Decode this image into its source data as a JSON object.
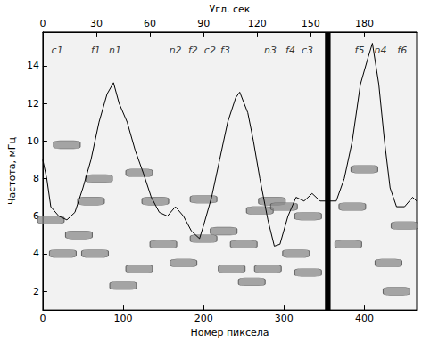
{
  "chart_data": {
    "type": "line",
    "x_label": "Номер пиксела",
    "x2_label": "Угл. сек",
    "y_label": "Частота, мГц",
    "xlim": [
      0,
      465
    ],
    "xticks": [
      0,
      100,
      200,
      300,
      400
    ],
    "x2lim": [
      0,
      209.25
    ],
    "x2ticks": [
      0,
      30,
      60,
      90,
      120,
      150,
      180
    ],
    "ylim": [
      1,
      15.8
    ],
    "yticks": [
      2,
      4,
      6,
      8,
      10,
      12,
      14
    ],
    "color": "#000000",
    "x": [
      0,
      5,
      10,
      20,
      30,
      40,
      50,
      60,
      70,
      80,
      88,
      95,
      105,
      115,
      125,
      135,
      145,
      155,
      165,
      175,
      185,
      195,
      200,
      210,
      220,
      230,
      240,
      245,
      255,
      262,
      270,
      280,
      288,
      295,
      305,
      315,
      325,
      335,
      345,
      365,
      375,
      385,
      395,
      405,
      410,
      418,
      425,
      432,
      440,
      450,
      460,
      465
    ],
    "values": [
      9,
      8,
      6.5,
      6,
      5.8,
      6.2,
      7.5,
      9,
      11,
      12.5,
      13.1,
      12,
      11,
      9.5,
      8.3,
      7,
      6.2,
      6,
      6.5,
      6,
      5.2,
      4.8,
      5.5,
      7,
      9,
      11,
      12.3,
      12.6,
      11.5,
      10,
      8,
      5.8,
      4.4,
      4.5,
      6,
      7,
      6.8,
      7.2,
      6.8,
      6.8,
      8,
      10,
      13,
      14.5,
      15.2,
      13,
      10,
      7.5,
      6.5,
      6.5,
      7,
      6.8
    ],
    "masked_range": [
      351,
      358
    ],
    "patches": {
      "color": "#8a8a8a",
      "x": [
        10,
        25,
        45,
        65,
        100,
        120,
        30,
        70,
        60,
        140,
        150,
        175,
        200,
        225,
        235,
        250,
        260,
        270,
        285,
        300,
        315,
        330,
        330,
        380,
        385,
        400,
        430,
        450,
        440,
        280,
        200,
        120
      ],
      "y": [
        5.8,
        4,
        5,
        4,
        2.3,
        3.2,
        9.8,
        8,
        6.8,
        6.8,
        4.5,
        3.5,
        4.8,
        5.2,
        3.2,
        4.5,
        2.5,
        6.3,
        6.8,
        6.5,
        4,
        6,
        3,
        4.5,
        6.5,
        8.5,
        3.5,
        5.5,
        2,
        3.2,
        6.9,
        8.3
      ]
    },
    "annotations": [
      {
        "text": "c1",
        "x": 18,
        "y": 14.8
      },
      {
        "text": "f1",
        "x": 66,
        "y": 14.8
      },
      {
        "text": "n1",
        "x": 90,
        "y": 14.8
      },
      {
        "text": "n2",
        "x": 165,
        "y": 14.8
      },
      {
        "text": "f2",
        "x": 187,
        "y": 14.8
      },
      {
        "text": "c2",
        "x": 208,
        "y": 14.8
      },
      {
        "text": "f3",
        "x": 227,
        "y": 14.8
      },
      {
        "text": "n3",
        "x": 283,
        "y": 14.8
      },
      {
        "text": "f4",
        "x": 308,
        "y": 14.8
      },
      {
        "text": "c3",
        "x": 329,
        "y": 14.8
      },
      {
        "text": "f5",
        "x": 394,
        "y": 14.8
      },
      {
        "text": "n4",
        "x": 420,
        "y": 14.8
      },
      {
        "text": "f6",
        "x": 447,
        "y": 14.8
      }
    ]
  }
}
